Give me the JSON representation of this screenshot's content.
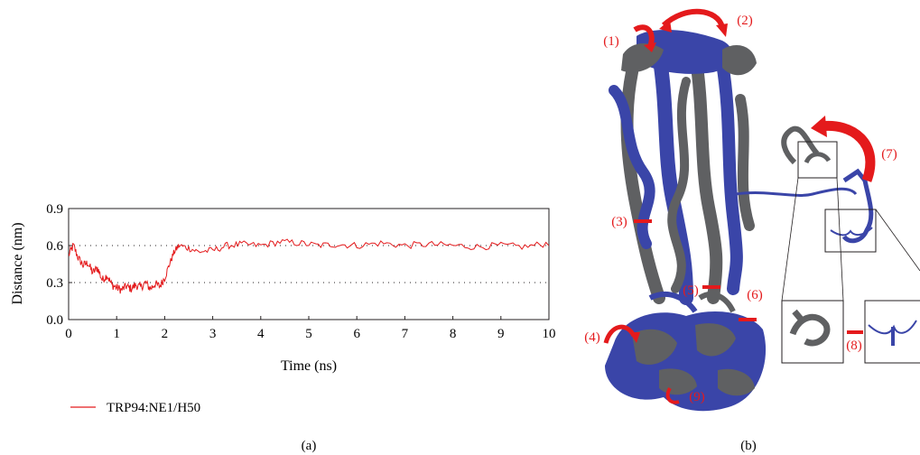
{
  "figure": {
    "panel_a_label": "(a)",
    "panel_b_label": "(b)"
  },
  "chart_data": {
    "type": "line",
    "title": "",
    "xlabel": "Time (ns)",
    "ylabel": "Distance (nm)",
    "xlim": [
      0,
      10
    ],
    "ylim": [
      0,
      0.9
    ],
    "x_ticks": [
      "0",
      "1",
      "2",
      "3",
      "4",
      "5",
      "6",
      "7",
      "8",
      "9",
      "10"
    ],
    "y_ticks": [
      "0.0",
      "0.3",
      "0.6",
      "0.9"
    ],
    "reference_lines": [
      0.3,
      0.6
    ],
    "legend_position": "below",
    "series": [
      {
        "name": "TRP94:NE1/H50",
        "color": "#e41a1c",
        "x": [
          0.0,
          0.1,
          0.2,
          0.3,
          0.4,
          0.5,
          0.6,
          0.7,
          0.8,
          0.9,
          1.0,
          1.1,
          1.2,
          1.3,
          1.4,
          1.5,
          1.6,
          1.7,
          1.8,
          1.9,
          2.0,
          2.1,
          2.2,
          2.3,
          2.5,
          2.7,
          3.0,
          3.3,
          3.6,
          4.0,
          4.4,
          4.8,
          5.2,
          5.6,
          6.0,
          6.5,
          7.0,
          7.5,
          8.0,
          8.5,
          9.0,
          9.5,
          10.0
        ],
        "values": [
          0.52,
          0.6,
          0.5,
          0.44,
          0.46,
          0.38,
          0.42,
          0.32,
          0.36,
          0.28,
          0.26,
          0.24,
          0.27,
          0.25,
          0.28,
          0.26,
          0.3,
          0.25,
          0.29,
          0.27,
          0.34,
          0.45,
          0.55,
          0.6,
          0.58,
          0.55,
          0.56,
          0.6,
          0.61,
          0.6,
          0.63,
          0.62,
          0.6,
          0.61,
          0.6,
          0.62,
          0.6,
          0.61,
          0.6,
          0.59,
          0.6,
          0.59,
          0.62
        ]
      }
    ]
  },
  "structure": {
    "colors": {
      "state1": "#3a45a8",
      "state2": "#5f6062",
      "arrow": "#e41a1c"
    },
    "labels": [
      "(1)",
      "(2)",
      "(3)",
      "(4)",
      "(5)",
      "(6)",
      "(7)",
      "(8)",
      "(9)"
    ]
  }
}
